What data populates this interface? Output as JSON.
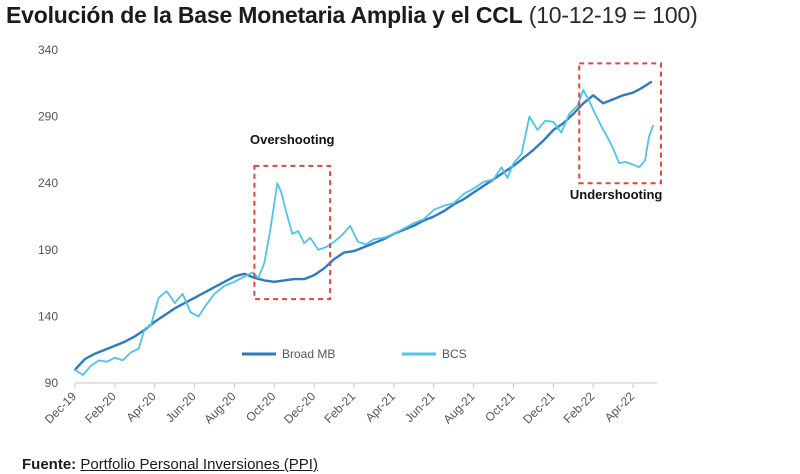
{
  "header": {
    "title": "Evolución de la Base Monetaria Amplia y el CCL",
    "title_suffix": "(10-12-19 = 100)"
  },
  "source": {
    "label": "Fuente:",
    "value": "Portfolio Personal Inversiones (PPI)"
  },
  "colors": {
    "broad_mb": "#2e7bbf",
    "bcs": "#4fc3ec",
    "annotation_box": "#e8433a",
    "tick_text": "#555555"
  },
  "chart_data": {
    "type": "line",
    "title": "Evolución de la Base Monetaria Amplia y el CCL (10-12-19 = 100)",
    "xlabel": "",
    "ylabel": "",
    "x_start": "2019-12",
    "x_end": "2022-05",
    "ylim": [
      90,
      340
    ],
    "yticks": [
      90,
      140,
      190,
      240,
      290,
      340
    ],
    "xtick_labels": [
      "Dec-19",
      "Feb-20",
      "Apr-20",
      "Jun-20",
      "Aug-20",
      "Oct-20",
      "Dec-20",
      "Feb-21",
      "Apr-21",
      "Jun-21",
      "Aug-21",
      "Oct-21",
      "Dec-21",
      "Feb-22",
      "Apr-22"
    ],
    "xtick_month_index": [
      0,
      2,
      4,
      6,
      8,
      10,
      12,
      14,
      16,
      18,
      20,
      22,
      24,
      26,
      28
    ],
    "grid": false,
    "legend_position": "bottom-center",
    "series": [
      {
        "name": "Broad MB",
        "color": "#2e7bbf",
        "points": [
          [
            0.0,
            100
          ],
          [
            0.5,
            108
          ],
          [
            1.0,
            112
          ],
          [
            1.5,
            115
          ],
          [
            2.0,
            118
          ],
          [
            2.5,
            121
          ],
          [
            3.0,
            125
          ],
          [
            3.5,
            130
          ],
          [
            4.0,
            136
          ],
          [
            4.5,
            141
          ],
          [
            5.0,
            146
          ],
          [
            5.5,
            150
          ],
          [
            6.0,
            154
          ],
          [
            6.5,
            158
          ],
          [
            7.0,
            162
          ],
          [
            7.5,
            166
          ],
          [
            8.0,
            170
          ],
          [
            8.5,
            172
          ],
          [
            9.0,
            169
          ],
          [
            9.5,
            167
          ],
          [
            10.0,
            166
          ],
          [
            10.5,
            167
          ],
          [
            11.0,
            168
          ],
          [
            11.5,
            168
          ],
          [
            12.0,
            171
          ],
          [
            12.5,
            176
          ],
          [
            13.0,
            183
          ],
          [
            13.5,
            188
          ],
          [
            14.0,
            189
          ],
          [
            14.5,
            192
          ],
          [
            15.0,
            195
          ],
          [
            15.5,
            198
          ],
          [
            16.0,
            202
          ],
          [
            16.5,
            205
          ],
          [
            17.0,
            208
          ],
          [
            17.5,
            212
          ],
          [
            18.0,
            215
          ],
          [
            18.5,
            219
          ],
          [
            19.0,
            224
          ],
          [
            19.5,
            228
          ],
          [
            20.0,
            233
          ],
          [
            20.5,
            238
          ],
          [
            21.0,
            243
          ],
          [
            21.5,
            248
          ],
          [
            22.0,
            253
          ],
          [
            22.5,
            259
          ],
          [
            23.0,
            265
          ],
          [
            23.5,
            272
          ],
          [
            24.0,
            280
          ],
          [
            24.5,
            285
          ],
          [
            25.0,
            292
          ],
          [
            25.5,
            300
          ],
          [
            26.0,
            306
          ],
          [
            26.5,
            300
          ],
          [
            27.0,
            303
          ],
          [
            27.5,
            306
          ],
          [
            28.0,
            308
          ],
          [
            28.5,
            312
          ],
          [
            28.9,
            316
          ]
        ]
      },
      {
        "name": "BCS",
        "color": "#4fc3ec",
        "points": [
          [
            0.0,
            100
          ],
          [
            0.4,
            96
          ],
          [
            0.8,
            103
          ],
          [
            1.2,
            107
          ],
          [
            1.6,
            106
          ],
          [
            2.0,
            109
          ],
          [
            2.4,
            107
          ],
          [
            2.8,
            113
          ],
          [
            3.2,
            116
          ],
          [
            3.5,
            131
          ],
          [
            3.8,
            133
          ],
          [
            4.2,
            154
          ],
          [
            4.6,
            159
          ],
          [
            5.0,
            150
          ],
          [
            5.4,
            157
          ],
          [
            5.8,
            143
          ],
          [
            6.2,
            140
          ],
          [
            6.5,
            147
          ],
          [
            7.0,
            157
          ],
          [
            7.5,
            163
          ],
          [
            8.0,
            166
          ],
          [
            8.5,
            170
          ],
          [
            8.9,
            173
          ],
          [
            9.2,
            169
          ],
          [
            9.5,
            180
          ],
          [
            9.8,
            205
          ],
          [
            10.0,
            225
          ],
          [
            10.15,
            240
          ],
          [
            10.35,
            233
          ],
          [
            10.6,
            218
          ],
          [
            10.9,
            202
          ],
          [
            11.2,
            204
          ],
          [
            11.5,
            195
          ],
          [
            11.8,
            199
          ],
          [
            12.2,
            190
          ],
          [
            12.6,
            192
          ],
          [
            13.0,
            196
          ],
          [
            13.4,
            201
          ],
          [
            13.8,
            208
          ],
          [
            14.2,
            196
          ],
          [
            14.6,
            194
          ],
          [
            15.0,
            198
          ],
          [
            15.5,
            199
          ],
          [
            16.0,
            202
          ],
          [
            16.5,
            206
          ],
          [
            17.0,
            210
          ],
          [
            17.5,
            213
          ],
          [
            18.0,
            220
          ],
          [
            18.5,
            223
          ],
          [
            19.0,
            225
          ],
          [
            19.5,
            232
          ],
          [
            20.0,
            236
          ],
          [
            20.5,
            241
          ],
          [
            21.0,
            243
          ],
          [
            21.4,
            252
          ],
          [
            21.7,
            244
          ],
          [
            22.0,
            255
          ],
          [
            22.4,
            262
          ],
          [
            22.8,
            290
          ],
          [
            23.2,
            280
          ],
          [
            23.6,
            287
          ],
          [
            24.0,
            286
          ],
          [
            24.4,
            278
          ],
          [
            24.8,
            292
          ],
          [
            25.2,
            298
          ],
          [
            25.5,
            310
          ],
          [
            25.8,
            302
          ],
          [
            26.0,
            295
          ],
          [
            26.4,
            283
          ],
          [
            26.8,
            272
          ],
          [
            27.0,
            266
          ],
          [
            27.3,
            255
          ],
          [
            27.6,
            256
          ],
          [
            28.0,
            254
          ],
          [
            28.3,
            252
          ],
          [
            28.6,
            257
          ],
          [
            28.8,
            275
          ],
          [
            29.0,
            283
          ]
        ]
      }
    ],
    "annotations": [
      {
        "label": "Overshooting",
        "x_range": [
          9.0,
          12.8
        ],
        "y_range": [
          153,
          253
        ]
      },
      {
        "label": "Undershooting",
        "x_range": [
          25.3,
          29.4
        ],
        "y_range": [
          240,
          330
        ]
      }
    ]
  }
}
